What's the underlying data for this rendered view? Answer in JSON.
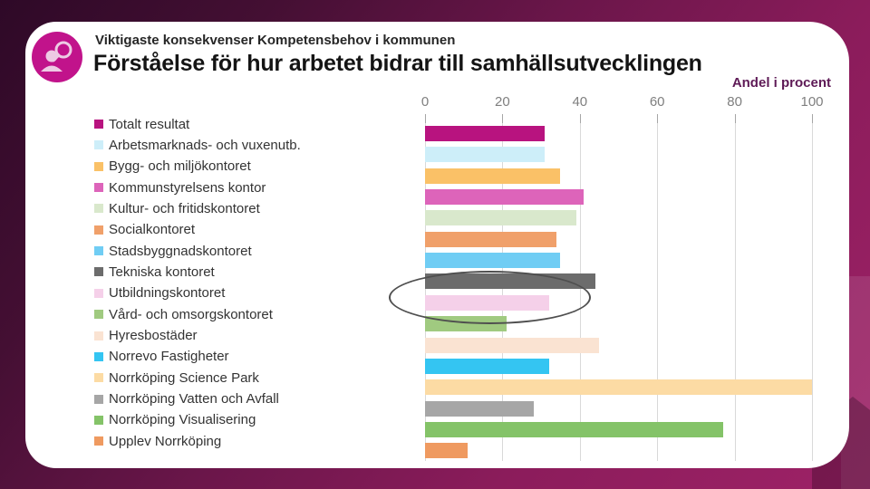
{
  "header": {
    "kicker": "Viktigaste konsekvenser Kompetensbehov i kommunen",
    "title": "Förståelse för hur arbetet bidrar till samhällsutvecklingen"
  },
  "icon": {
    "name": "person-search-icon",
    "circle_color": "#c1138b",
    "glyph_color": "#eeccе4"
  },
  "chart_data": {
    "type": "bar",
    "orientation": "horizontal",
    "title": "Förståelse för hur arbetet bidrar till samhällsutvecklingen",
    "unit": "Andel i procent",
    "xlim": [
      0,
      100
    ],
    "x_ticks": [
      0,
      20,
      40,
      60,
      80,
      100
    ],
    "grid": true,
    "legend_position": "left",
    "categories": [
      "Totalt resultat",
      "Arbetsmarknads- och vuxenutb.",
      "Bygg- och miljökontoret",
      "Kommunstyrelsens kontor",
      "Kultur- och fritidskontoret",
      "Socialkontoret",
      "Stadsbyggnadskontoret",
      "Tekniska kontoret",
      "Utbildningskontoret",
      "Vård- och omsorgskontoret",
      "Hyresbostäder",
      "Norrevo Fastigheter",
      "Norrköping Science Park",
      "Norrköping Vatten och Avfall",
      "Norrköping Visualisering",
      "Upplev Norrköping"
    ],
    "values": [
      31,
      31,
      35,
      41,
      39,
      34,
      35,
      44,
      32,
      21,
      45,
      32,
      100,
      28,
      77,
      11
    ],
    "colors": [
      "#b8137f",
      "#cdeef9",
      "#fac167",
      "#dd64ba",
      "#d9e8cc",
      "#f0a06a",
      "#70cdf4",
      "#6c6c6c",
      "#f5d0e9",
      "#a0ca80",
      "#fae3d2",
      "#34c5f2",
      "#fcdba4",
      "#a6a6a6",
      "#84c368",
      "#ef9a60"
    ],
    "annotation": {
      "shape": "ellipse",
      "around_category": "Utbildningskontoret",
      "stroke_color": "#4f4f4f"
    }
  },
  "theme": {
    "background_dark": "#2e0927",
    "background_magenta": "#9e2267",
    "card": "#ffffff",
    "unit_label_color": "#5e1a56",
    "axis_text": "#7f7f7f",
    "gridline": "#d9d9d9"
  }
}
